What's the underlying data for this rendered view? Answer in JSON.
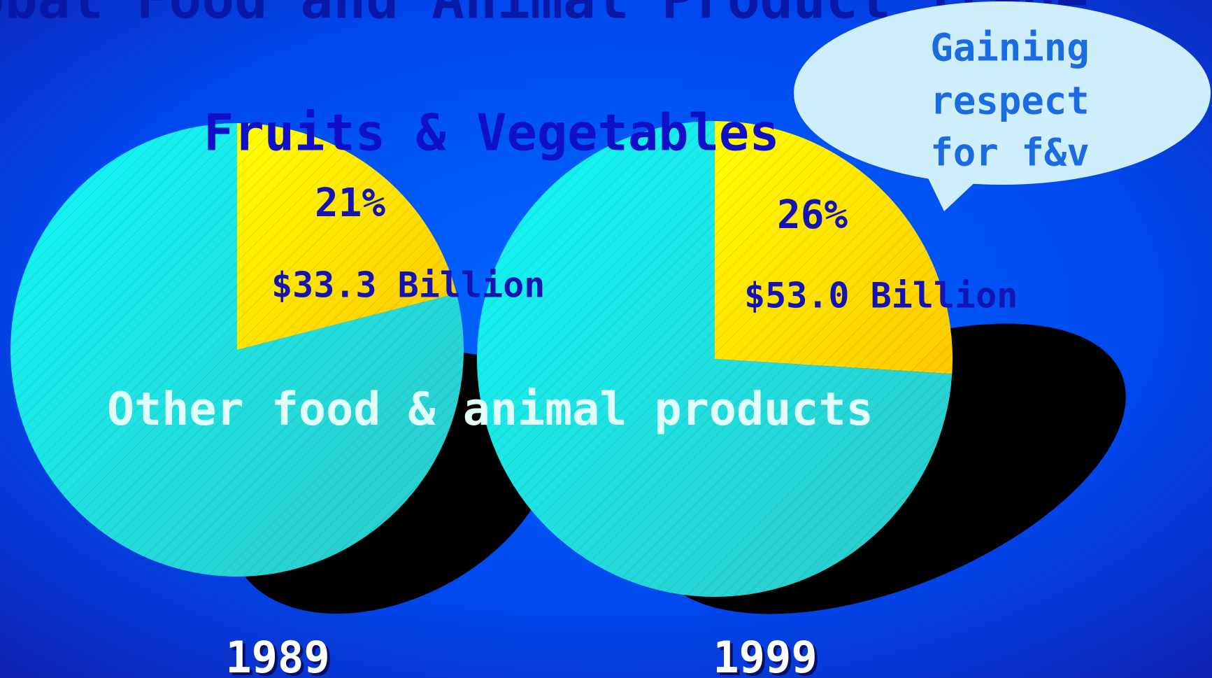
{
  "title": "Global Food and Animal Product Trade",
  "categories": [
    "Fruits & Vegetables",
    "Other food & animal products"
  ],
  "colors": [
    "#ffe600",
    "#1ee6e6"
  ],
  "annotation": [
    "Gaining",
    "respect",
    "for f&v"
  ],
  "chart_data": [
    {
      "type": "pie",
      "title": "1989",
      "values": [
        21,
        79
      ],
      "value_labels": [
        "21%",
        null
      ],
      "amount": "$33.3 Billion"
    },
    {
      "type": "pie",
      "title": "1999",
      "values": [
        26,
        74
      ],
      "value_labels": [
        "26%",
        null
      ],
      "amount": "$53.0 Billion"
    }
  ]
}
